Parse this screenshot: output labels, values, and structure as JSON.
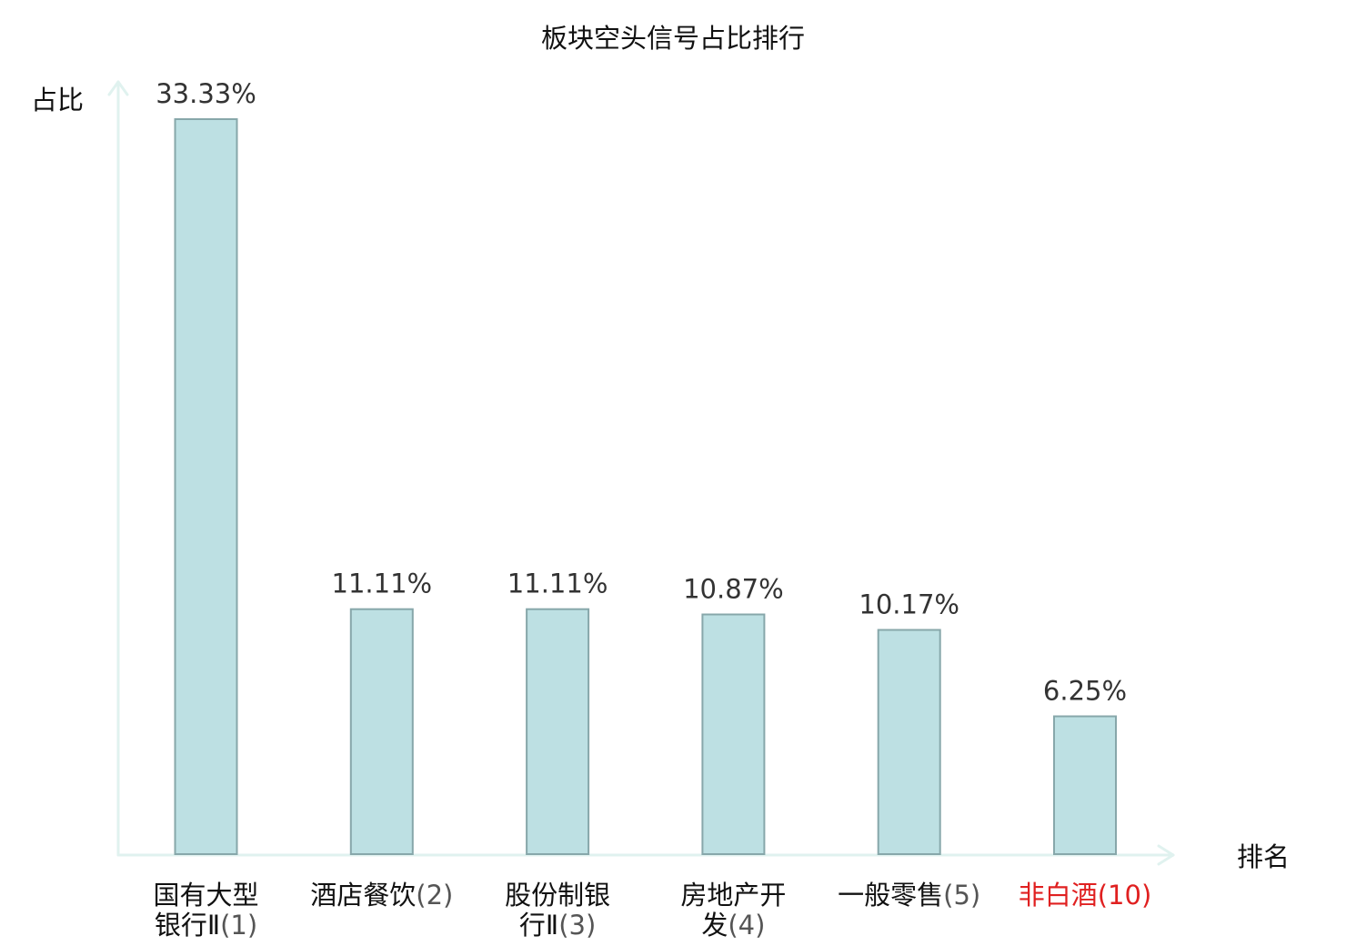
{
  "chart_data": {
    "type": "bar",
    "title": "板块空头信号占比排行",
    "ylabel": "占比",
    "xlabel": "排名",
    "ylim": [
      0,
      35
    ],
    "grid": false,
    "legend": "none",
    "categories": [
      {
        "name_lines": [
          "国有大型",
          "银行Ⅱ"
        ],
        "rank": "(1)",
        "highlight": false
      },
      {
        "name_lines": [
          "酒店餐饮"
        ],
        "rank": "(2)",
        "highlight": false
      },
      {
        "name_lines": [
          "股份制银",
          "行Ⅱ"
        ],
        "rank": "(3)",
        "highlight": false
      },
      {
        "name_lines": [
          "房地产开",
          "发"
        ],
        "rank": "(4)",
        "highlight": false
      },
      {
        "name_lines": [
          "一般零售"
        ],
        "rank": "(5)",
        "highlight": false
      },
      {
        "name_lines": [
          "非白酒"
        ],
        "rank": "(10)",
        "highlight": true
      }
    ],
    "values": [
      33.33,
      11.11,
      11.11,
      10.87,
      10.17,
      6.25
    ],
    "value_labels": [
      "33.33%",
      "11.11%",
      "11.11%",
      "10.87%",
      "10.17%",
      "6.25%"
    ]
  },
  "colors": {
    "bar_fill": "#bde0e3",
    "bar_stroke": "#87a7aa",
    "axis": "#e0f2ef",
    "text": "#111111",
    "value_text": "#333333",
    "rank_text": "#555555",
    "highlight": "#e02020"
  }
}
